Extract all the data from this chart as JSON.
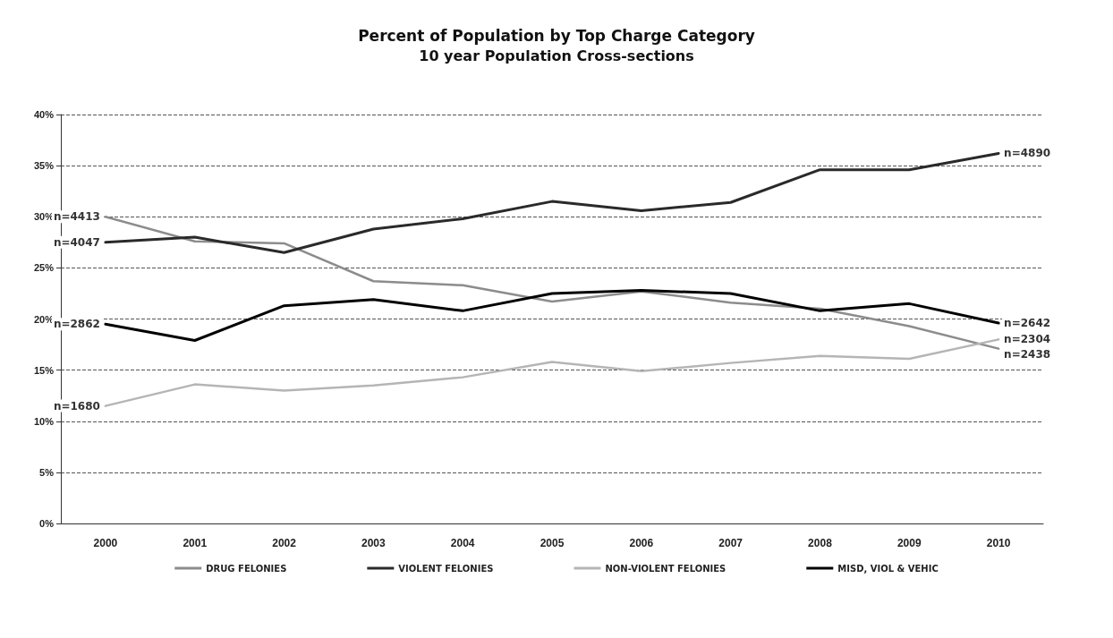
{
  "chart_data": {
    "type": "line",
    "title": "Percent of Population by Top Charge Category",
    "subtitle": "10 year Population Cross-sections",
    "categories": [
      "2000",
      "2001",
      "2002",
      "2003",
      "2004",
      "2005",
      "2006",
      "2007",
      "2008",
      "2009",
      "2010"
    ],
    "series": [
      {
        "name": "DRUG FELONIES",
        "color": "#8c8c8c",
        "values": [
          30.0,
          27.6,
          27.4,
          23.7,
          23.3,
          21.7,
          22.7,
          21.6,
          21.0,
          19.3,
          17.1
        ]
      },
      {
        "name": "VIOLENT FELONIES",
        "color": "#2a2a2a",
        "values": [
          27.5,
          28.0,
          26.5,
          28.8,
          29.8,
          31.5,
          30.6,
          31.4,
          34.6,
          34.6,
          36.2
        ]
      },
      {
        "name": "NON-VIOLENT FELONIES",
        "color": "#b5b5b5",
        "values": [
          11.5,
          13.6,
          13.0,
          13.5,
          14.3,
          15.8,
          14.9,
          15.7,
          16.4,
          16.1,
          18.0
        ]
      },
      {
        "name": "MISD, VIOL & VEHIC",
        "color": "#000000",
        "values": [
          19.5,
          17.9,
          21.3,
          21.9,
          20.8,
          22.5,
          22.8,
          22.5,
          20.8,
          21.5,
          19.6
        ]
      }
    ],
    "ylim": [
      0,
      40
    ],
    "yticks": [
      {
        "value": 0,
        "label": "0%"
      },
      {
        "value": 5,
        "label": "5%"
      },
      {
        "value": 10,
        "label": "10%"
      },
      {
        "value": 15,
        "label": "15%"
      },
      {
        "value": 20,
        "label": "20%"
      },
      {
        "value": 25,
        "label": "25%"
      },
      {
        "value": 30,
        "label": "30%"
      },
      {
        "value": 35,
        "label": "35%"
      },
      {
        "value": 40,
        "label": "40%"
      }
    ],
    "annotations": [
      {
        "text": "n=4413",
        "x": "2000",
        "y": 30.0
      },
      {
        "text": "n=4047",
        "x": "2000",
        "y": 27.5
      },
      {
        "text": "n=2862",
        "x": "2000",
        "y": 19.5
      },
      {
        "text": "n=1680",
        "x": "2000",
        "y": 11.5
      },
      {
        "text": "n=4890",
        "x": "2010",
        "y": 36.2
      },
      {
        "text": "n=2642",
        "x": "2010",
        "y": 19.6
      },
      {
        "text": "n=2438",
        "x": "2010",
        "y": 17.1
      },
      {
        "text": "n=2304",
        "x": "2010",
        "y": 18.0
      }
    ],
    "grid": "y",
    "legend": "bottom",
    "marker": "none",
    "line_style": "solid"
  }
}
